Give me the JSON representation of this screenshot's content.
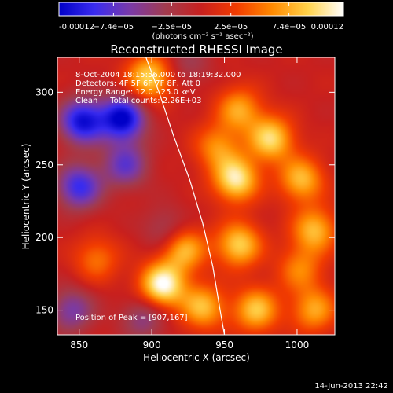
{
  "chart_data": {
    "type": "heatmap",
    "title": "Reconstructed RHESSI Image",
    "xlabel": "Heliocentric X (arcsec)",
    "ylabel": "Heliocentric Y (arcsec)",
    "xlim": [
      835,
      1026
    ],
    "ylim": [
      133,
      324
    ],
    "x_ticks": [
      850,
      900,
      950,
      1000
    ],
    "y_ticks": [
      150,
      200,
      250,
      300
    ],
    "colorbar": {
      "min": -0.00012,
      "max": 0.00012,
      "tick_labels": [
        "-0.00012",
        "−7.4e−05",
        "−2.5e−05",
        "2.5e−05",
        "7.4e−05",
        "0.00012"
      ],
      "tick_values": [
        -0.00012,
        -7.4e-05,
        -2.5e-05,
        2.5e-05,
        7.4e-05,
        0.00012
      ],
      "units_label": "(photons cm⁻² s⁻¹ asec⁻²)",
      "colors": [
        "#0000c8",
        "#3a2cf0",
        "#7a3aa8",
        "#a23b4e",
        "#c8201e",
        "#f23c00",
        "#ff8a00",
        "#ffd24a",
        "#ffffff"
      ]
    },
    "annotations": [
      "8-Oct-2004 18:15:56.000 to 18:19:32.000",
      "Detectors: 4F 5F 6F 7F 8F, Att 0",
      "Energy Range: 12.0 - 25.0 keV",
      "Clean     Total counts: 2.26E+03"
    ],
    "peak_label": "Position of Peak = [907,167]",
    "peak_position": [
      907,
      167
    ],
    "limb_curve": [
      [
        896,
        324
      ],
      [
        905,
        300
      ],
      [
        915,
        270
      ],
      [
        926,
        240
      ],
      [
        935,
        210
      ],
      [
        942,
        180
      ],
      [
        947,
        150
      ],
      [
        950,
        133
      ]
    ],
    "sources": [
      {
        "x": 958,
        "y": 240,
        "value": 0.000105
      },
      {
        "x": 982,
        "y": 268,
        "value": 9.5e-05
      },
      {
        "x": 907,
        "y": 167,
        "value": 0.00012
      },
      {
        "x": 960,
        "y": 195,
        "value": 9e-05
      },
      {
        "x": 922,
        "y": 192,
        "value": 8.2e-05
      },
      {
        "x": 898,
        "y": 310,
        "value": 9.5e-05
      },
      {
        "x": 972,
        "y": 150,
        "value": 8.5e-05
      },
      {
        "x": 1003,
        "y": 240,
        "value": 8e-05
      },
      {
        "x": 1012,
        "y": 205,
        "value": 8e-05
      },
      {
        "x": 1012,
        "y": 150,
        "value": 7e-05
      },
      {
        "x": 935,
        "y": 152,
        "value": 8e-05
      },
      {
        "x": 960,
        "y": 288,
        "value": 7e-05
      },
      {
        "x": 1002,
        "y": 178,
        "value": 5.5e-05
      },
      {
        "x": 862,
        "y": 185,
        "value": 5e-05
      },
      {
        "x": 945,
        "y": 262,
        "value": 6e-05
      },
      {
        "x": 852,
        "y": 280,
        "value": -0.00011
      },
      {
        "x": 880,
        "y": 282,
        "value": -0.00012
      },
      {
        "x": 850,
        "y": 235,
        "value": -9e-05
      },
      {
        "x": 882,
        "y": 250,
        "value": -7e-05
      },
      {
        "x": 910,
        "y": 205,
        "value": -4e-05
      },
      {
        "x": 845,
        "y": 150,
        "value": -6e-05
      },
      {
        "x": 895,
        "y": 145,
        "value": -5e-05
      },
      {
        "x": 925,
        "y": 320,
        "value": -3e-05
      }
    ]
  },
  "footer": {
    "timestamp": "14-Jun-2013 22:42"
  }
}
